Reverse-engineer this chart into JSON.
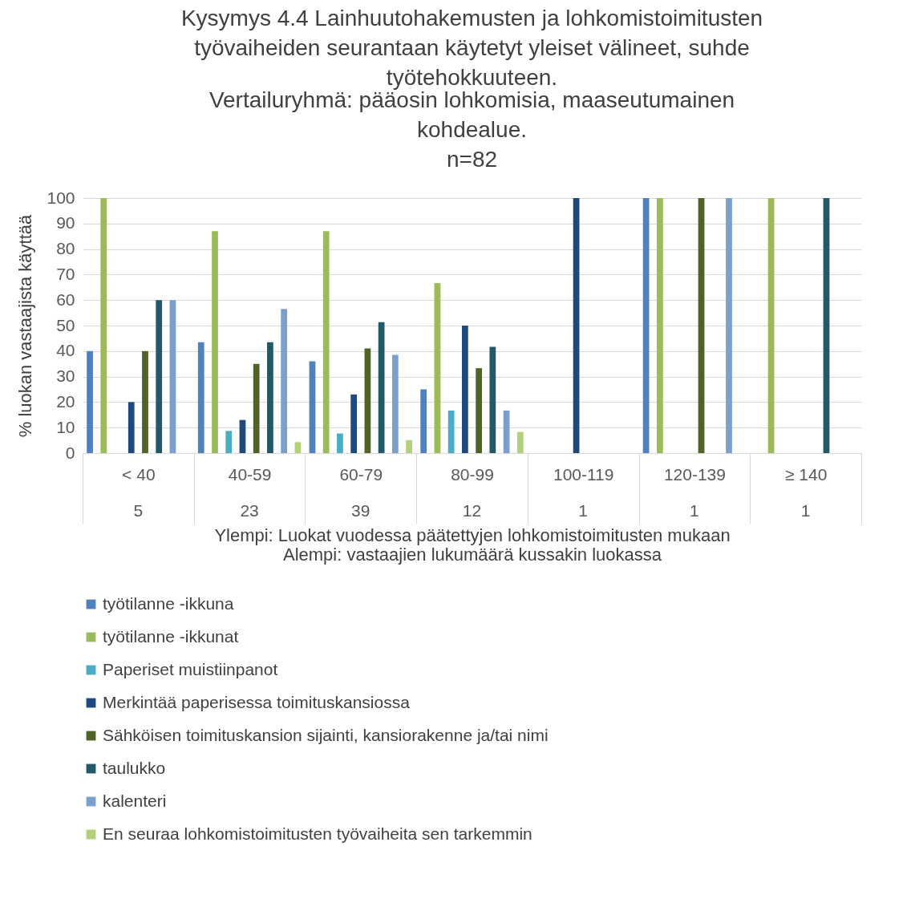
{
  "chart_data": {
    "type": "bar",
    "title": "Kysymys 4.4 Lainhuutohakemusten ja lohkomistoimitusten\ntyövaiheiden seurantaan käytetyt yleiset välineet, suhde\ntyötehokkuuteen.",
    "subtitle": "Vertailuryhmä: pääosin lohkomisia, maaseutumainen\nkohdealue.\nn=82",
    "xlabel": "Ylempi: Luokat vuodessa päätettyjen lohkomistoimitusten mukaan\nAlempi: vastaajien lukumäärä kussakin luokassa",
    "ylabel": "% luokan vastaajista käyttää",
    "categories": [
      "< 40",
      "40-59",
      "60-79",
      "80-99",
      "100-119",
      "120-139",
      "≥ 140"
    ],
    "annotations": [
      "5",
      "23",
      "39",
      "12",
      "1",
      "1",
      "1"
    ],
    "series": [
      {
        "name": "työtilanne -ikkuna",
        "color": "#4f81bd",
        "values": [
          40,
          43.5,
          36,
          25,
          null,
          100,
          null
        ]
      },
      {
        "name": "työtilanne -ikkunat",
        "color": "#9bbb59",
        "values": [
          100,
          87,
          87,
          66.7,
          null,
          100,
          100
        ]
      },
      {
        "name": "Paperiset muistiinpanot",
        "color": "#4bacc6",
        "values": [
          null,
          8.7,
          7.7,
          16.7,
          null,
          null,
          null
        ]
      },
      {
        "name": "Merkintää paperisessa toimituskansiossa",
        "color": "#1f497d",
        "values": [
          20,
          13,
          23,
          50,
          100,
          null,
          null
        ]
      },
      {
        "name": "Sähköisen toimituskansion sijainti, kansiorakenne ja/tai nimi",
        "color": "#4f6228",
        "values": [
          40,
          35,
          41,
          33.3,
          null,
          100,
          null
        ]
      },
      {
        "name": "taulukko",
        "color": "#215968",
        "values": [
          60,
          43.5,
          51.3,
          41.7,
          null,
          null,
          100
        ]
      },
      {
        "name": "kalenteri",
        "color": "#7ba0cd",
        "values": [
          60,
          56.5,
          38.5,
          16.7,
          null,
          100,
          null
        ]
      },
      {
        "name": "En seuraa lohkomistoimitusten työvaiheita sen tarkemmin",
        "color": "#b3d17a",
        "values": [
          null,
          4.3,
          5.1,
          8.3,
          null,
          null,
          null
        ]
      }
    ],
    "ylim": [
      0,
      100
    ],
    "yticks": [
      0,
      10,
      20,
      30,
      40,
      50,
      60,
      70,
      80,
      90,
      100
    ],
    "grid": "y",
    "legend": "bottom"
  }
}
